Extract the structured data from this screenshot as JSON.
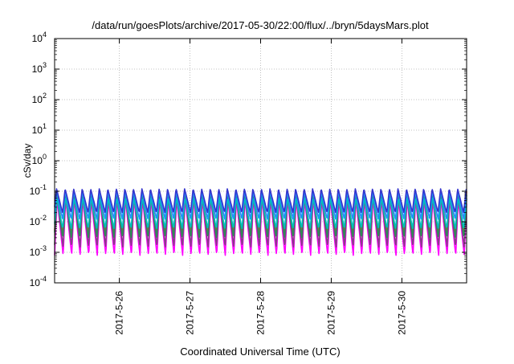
{
  "chart_data": {
    "type": "line",
    "title": "/data/run/goesPlots/archive/2017-05-30/22:00/flux/../bryn/5daysMars.plot",
    "xlabel": "Coordinated Universal Time (UTC)",
    "ylabel": "cSv/day",
    "yscale": "log",
    "ylim": [
      0.0001,
      10000
    ],
    "y_ticks": [
      {
        "base": "10",
        "exp": "-4",
        "value": 0.0001
      },
      {
        "base": "10",
        "exp": "-3",
        "value": 0.001
      },
      {
        "base": "10",
        "exp": "-2",
        "value": 0.01
      },
      {
        "base": "10",
        "exp": "-1",
        "value": 0.1
      },
      {
        "base": "10",
        "exp": "0",
        "value": 1
      },
      {
        "base": "10",
        "exp": "1",
        "value": 10
      },
      {
        "base": "10",
        "exp": "2",
        "value": 100
      },
      {
        "base": "10",
        "exp": "3",
        "value": 1000
      },
      {
        "base": "10",
        "exp": "4",
        "value": 10000
      }
    ],
    "xlim": [
      "2017-05-25 02:00",
      "2017-05-30 22:00"
    ],
    "x_ticks": [
      "2017-5-26",
      "2017-5-27",
      "2017-5-28",
      "2017-5-29",
      "2017-5-30"
    ],
    "grid": true,
    "period_hours": 2.9,
    "series": [
      {
        "color": "#ff00ff",
        "peak": 0.055,
        "trough": 0.0008
      },
      {
        "color": "#8b3a8b",
        "peak": 0.07,
        "trough": 0.0015
      },
      {
        "color": "#ff3030",
        "peak": 0.1,
        "trough": 0.004
      },
      {
        "color": "#2e8b57",
        "peak": 0.08,
        "trough": 0.003
      },
      {
        "color": "#00bfbf",
        "peak": 0.06,
        "trough": 0.006
      },
      {
        "color": "#1e90ff",
        "peak": 0.1,
        "trough": 0.012
      },
      {
        "color": "#3333cc",
        "peak": 0.12,
        "trough": 0.02
      }
    ]
  }
}
